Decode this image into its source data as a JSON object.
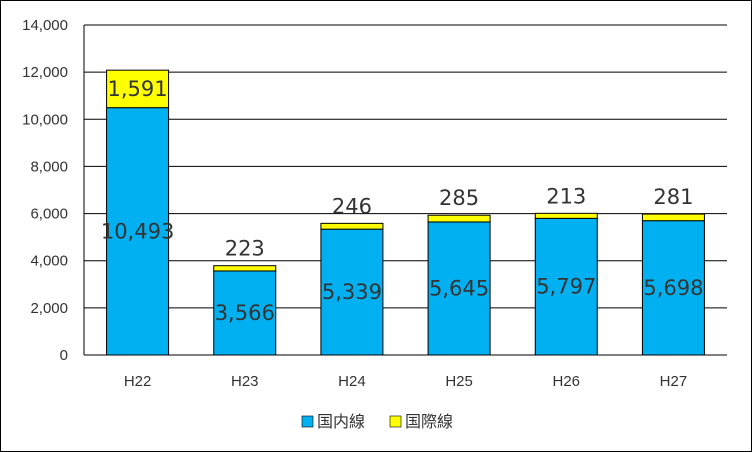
{
  "chart_data": {
    "type": "bar",
    "stacked": true,
    "categories": [
      "H22",
      "H23",
      "H24",
      "H25",
      "H26",
      "H27"
    ],
    "series": [
      {
        "name": "国内線",
        "color": "#00B0F0",
        "values": [
          10493,
          3566,
          5339,
          5645,
          5797,
          5698
        ]
      },
      {
        "name": "国際線",
        "color": "#FFFF00",
        "values": [
          1591,
          223,
          246,
          285,
          213,
          281
        ]
      }
    ],
    "value_labels": {
      "domestic": [
        "10,493",
        "3,566",
        "5,339",
        "5,645",
        "5,797",
        "5,698"
      ],
      "international": [
        "1,591",
        "223",
        "246",
        "285",
        "213",
        "281"
      ]
    },
    "y_ticks": [
      "0",
      "2,000",
      "4,000",
      "6,000",
      "8,000",
      "10,000",
      "12,000",
      "14,000"
    ],
    "ylim": [
      0,
      14000
    ],
    "grid": true,
    "legend_position": "bottom"
  }
}
